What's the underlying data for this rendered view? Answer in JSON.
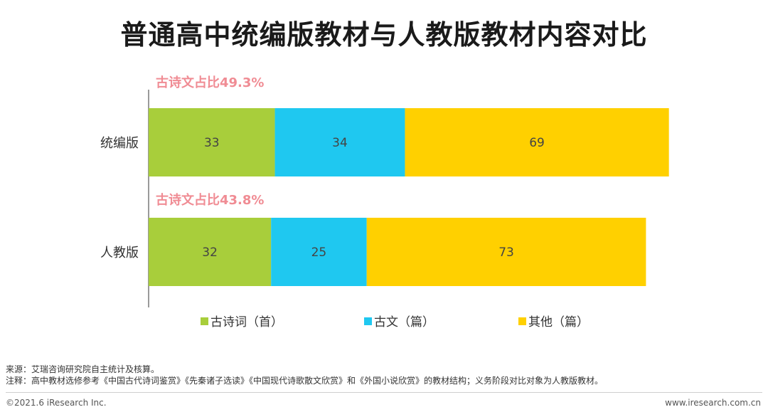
{
  "title": "普通高中统编版教材与人教版教材内容对比",
  "chart_data": {
    "type": "bar",
    "orientation": "horizontal",
    "stacked": true,
    "categories": [
      "统编版",
      "人教版"
    ],
    "series": [
      {
        "name": "古诗词（首）",
        "values": [
          33,
          32
        ],
        "color": "#A8CE3B"
      },
      {
        "name": "古文（篇）",
        "values": [
          34,
          25
        ],
        "color": "#1FC8F0"
      },
      {
        "name": "其他（篇）",
        "values": [
          69,
          73
        ],
        "color": "#FFD000"
      }
    ],
    "annotations": [
      "古诗文占比49.3%",
      "古诗文占比43.8%"
    ],
    "annotation_color": "#F08C94",
    "legend_position": "bottom",
    "grid": false
  },
  "notes": {
    "source": "来源：艾瑞咨询研究院自主统计及核算。",
    "remark": "注释：高中教材选修参考《中国古代诗词鉴赏》《先秦诸子选读》《中国现代诗歌散文欣赏》和《外国小说欣赏》的教材结构；义务阶段对比对象为人教版教材。"
  },
  "footer": {
    "copyright": "©2021.6 iResearch Inc.",
    "website": "www.iresearch.com.cn"
  }
}
